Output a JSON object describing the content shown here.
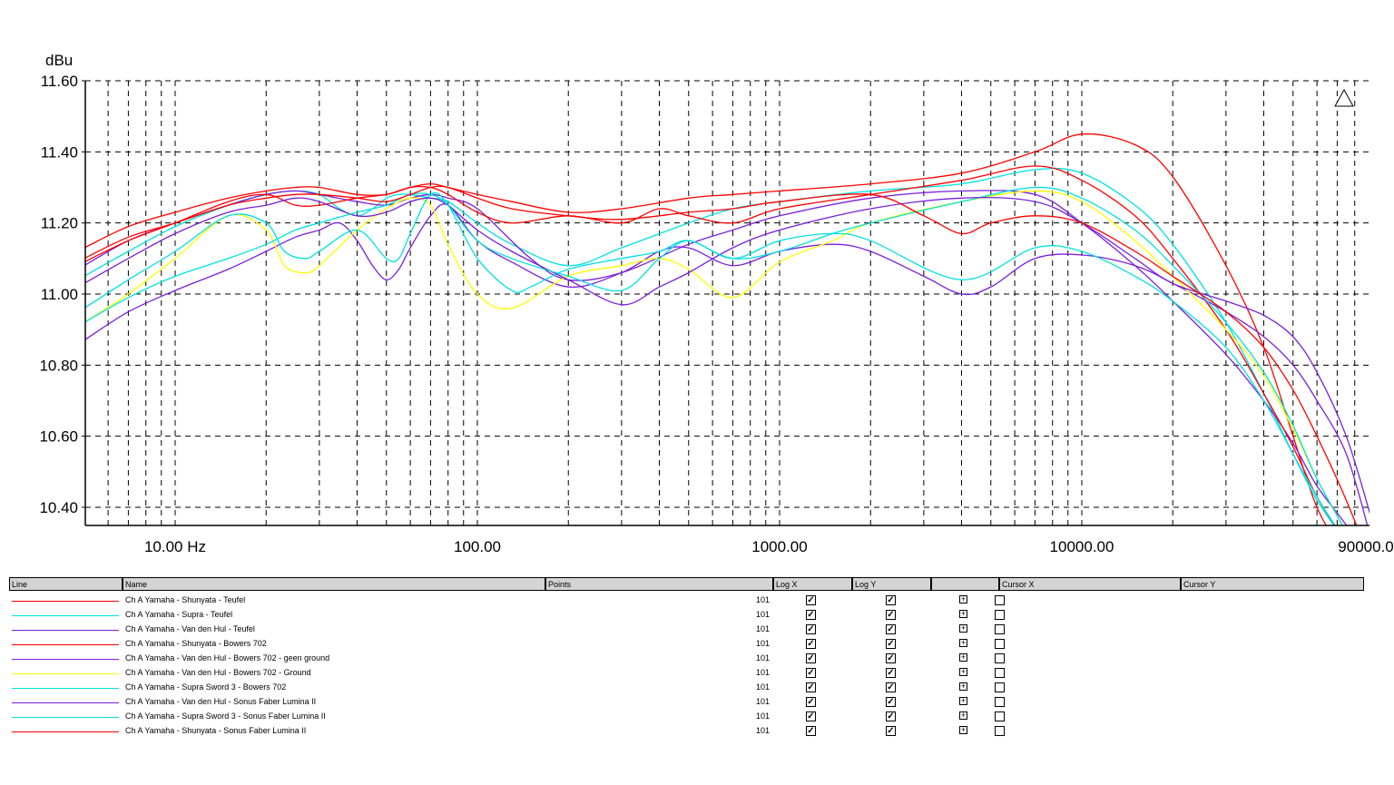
{
  "chart_data": {
    "type": "line",
    "ylabel": "dBu",
    "x_scale": "log",
    "xlim": [
      5,
      110000
    ],
    "ylim": [
      10.35,
      11.6
    ],
    "x_ticks": [
      10,
      100,
      1000,
      10000,
      90000
    ],
    "x_tick_labels": [
      "10.00 Hz",
      "100.00",
      "1000.00",
      "10000.00",
      "90000.00"
    ],
    "y_ticks": [
      10.4,
      10.6,
      10.8,
      11.0,
      11.2,
      11.4,
      11.6
    ],
    "y_tick_labels": [
      "10.40",
      "10.60",
      "10.80",
      "11.00",
      "11.20",
      "11.40",
      "11.60"
    ],
    "grid": true,
    "series": [
      {
        "name": "Ch A Yamaha - Shunyata - Teufel",
        "color": "#ff0000",
        "points": 101,
        "x": [
          5,
          7,
          10,
          15,
          20,
          25,
          30,
          40,
          50,
          60,
          70,
          80,
          100,
          130,
          200,
          300,
          500,
          700,
          1000,
          2000,
          4000,
          7000,
          10000,
          15000,
          20000,
          30000,
          40000,
          50000,
          60000,
          75000,
          90000
        ],
        "y": [
          11.13,
          11.19,
          11.23,
          11.27,
          11.29,
          11.3,
          11.3,
          11.28,
          11.28,
          11.3,
          11.31,
          11.3,
          11.28,
          11.26,
          11.23,
          11.24,
          11.27,
          11.28,
          11.29,
          11.31,
          11.34,
          11.4,
          11.45,
          11.42,
          11.33,
          11.08,
          10.85,
          10.6,
          10.4,
          10.25,
          10.1
        ]
      },
      {
        "name": "Ch A Yamaha - Supra - Teufel",
        "color": "#00e0e0",
        "points": 101,
        "x": [
          5,
          7,
          10,
          15,
          20,
          25,
          30,
          35,
          40,
          45,
          50,
          55,
          60,
          70,
          80,
          100,
          130,
          200,
          300,
          500,
          700,
          1000,
          2000,
          4000,
          7000,
          10000,
          15000,
          20000,
          30000,
          40000,
          50000,
          60000,
          75000,
          90000
        ],
        "y": [
          11.05,
          11.12,
          11.19,
          11.25,
          11.28,
          11.29,
          11.28,
          11.24,
          11.22,
          11.24,
          11.27,
          11.28,
          11.28,
          11.27,
          11.26,
          11.2,
          11.14,
          11.08,
          11.13,
          11.2,
          11.24,
          11.26,
          11.29,
          11.31,
          11.35,
          11.34,
          11.25,
          11.14,
          10.92,
          10.72,
          10.55,
          10.42,
          10.3,
          10.2
        ]
      },
      {
        "name": "Ch A Yamaha - Van den Hul - Teufel",
        "color": "#7a1fdc",
        "points": 101,
        "x": [
          5,
          7,
          10,
          15,
          20,
          25,
          30,
          40,
          50,
          60,
          70,
          80,
          100,
          150,
          200,
          300,
          500,
          700,
          1000,
          2000,
          4000,
          7000,
          10000,
          15000,
          20000,
          30000,
          40000,
          50000,
          60000,
          75000,
          90000
        ],
        "y": [
          11.08,
          11.15,
          11.2,
          11.25,
          11.28,
          11.29,
          11.28,
          11.26,
          11.25,
          11.27,
          11.28,
          11.27,
          11.24,
          11.1,
          11.04,
          11.06,
          11.14,
          11.18,
          11.22,
          11.27,
          11.29,
          11.28,
          11.2,
          11.08,
          10.98,
          10.83,
          10.7,
          10.58,
          10.46,
          10.35,
          10.25
        ]
      },
      {
        "name": "Ch A Yamaha - Shunyata - Bowers 702",
        "color": "#ff0000",
        "points": 101,
        "x": [
          5,
          7,
          10,
          15,
          20,
          25,
          30,
          40,
          50,
          60,
          70,
          80,
          100,
          130,
          200,
          300,
          400,
          500,
          700,
          1000,
          2000,
          4000,
          7000,
          10000,
          15000,
          20000,
          30000,
          40000,
          50000,
          60000,
          75000,
          90000
        ],
        "y": [
          11.09,
          11.15,
          11.2,
          11.26,
          11.28,
          11.25,
          11.25,
          11.27,
          11.28,
          11.3,
          11.3,
          11.28,
          11.23,
          11.2,
          11.22,
          11.2,
          11.24,
          11.22,
          11.2,
          11.24,
          11.28,
          11.32,
          11.36,
          11.32,
          11.22,
          11.1,
          10.9,
          10.72,
          10.57,
          10.43,
          10.3,
          10.2
        ]
      },
      {
        "name": "Ch A Yamaha - Van den Hul - Bowers 702 - geen ground",
        "color": "#7a1fdc",
        "points": 101,
        "x": [
          5,
          7,
          10,
          15,
          20,
          25,
          30,
          35,
          40,
          45,
          50,
          55,
          60,
          70,
          80,
          100,
          130,
          200,
          300,
          400,
          500,
          700,
          1000,
          1500,
          2000,
          3000,
          4000,
          5000,
          7000,
          10000,
          15000,
          20000,
          30000,
          40000,
          50000,
          60000,
          75000,
          90000
        ],
        "y": [
          10.87,
          10.95,
          11.01,
          11.07,
          11.12,
          11.16,
          11.18,
          11.2,
          11.15,
          11.08,
          11.04,
          11.07,
          11.13,
          11.22,
          11.25,
          11.15,
          11.09,
          11.02,
          11.06,
          11.12,
          11.13,
          11.08,
          11.12,
          11.14,
          11.12,
          11.05,
          11.0,
          11.02,
          11.1,
          11.11,
          11.08,
          11.03,
          10.95,
          10.88,
          10.8,
          10.7,
          10.55,
          10.32
        ]
      },
      {
        "name": "Ch A Yamaha - Van den Hul - Bowers 702 - Ground",
        "color": "#ffff00",
        "points": 101,
        "x": [
          5,
          7,
          10,
          15,
          20,
          23,
          27,
          30,
          40,
          50,
          60,
          70,
          80,
          100,
          130,
          200,
          300,
          400,
          500,
          700,
          1000,
          1500,
          2000,
          4000,
          7000,
          10000,
          15000,
          20000,
          30000,
          40000,
          50000,
          60000,
          75000,
          90000
        ],
        "y": [
          10.92,
          11.0,
          11.1,
          11.22,
          11.18,
          11.08,
          11.06,
          11.08,
          11.18,
          11.24,
          11.27,
          11.25,
          11.14,
          11.0,
          10.96,
          11.05,
          11.08,
          11.1,
          11.07,
          10.99,
          11.09,
          11.15,
          11.2,
          11.26,
          11.29,
          11.26,
          11.15,
          11.05,
          10.9,
          10.77,
          10.62,
          10.48,
          10.33,
          10.2
        ]
      },
      {
        "name": "Ch A Yamaha - Supra Sword 3 - Bowers 702",
        "color": "#00e0e0",
        "points": 101,
        "x": [
          5,
          7,
          10,
          15,
          20,
          23,
          27,
          30,
          40,
          50,
          55,
          60,
          70,
          80,
          100,
          130,
          150,
          200,
          300,
          400,
          500,
          700,
          1000,
          1500,
          2000,
          4000,
          7000,
          10000,
          15000,
          20000,
          30000,
          40000,
          50000,
          60000,
          75000,
          90000
        ],
        "y": [
          10.96,
          11.04,
          11.12,
          11.22,
          11.2,
          11.12,
          11.1,
          11.12,
          11.18,
          11.1,
          11.1,
          11.17,
          11.28,
          11.25,
          11.1,
          11.01,
          11.02,
          11.07,
          11.1,
          11.12,
          11.15,
          11.1,
          11.12,
          11.17,
          11.2,
          11.26,
          11.3,
          11.27,
          11.18,
          11.08,
          10.92,
          10.78,
          10.63,
          10.48,
          10.33,
          10.2
        ]
      },
      {
        "name": "Ch A Yamaha - Van den Hul - Sonus Faber Lumina II",
        "color": "#7a1fdc",
        "points": 101,
        "x": [
          5,
          7,
          10,
          15,
          20,
          25,
          30,
          40,
          50,
          60,
          70,
          80,
          100,
          130,
          200,
          300,
          400,
          500,
          700,
          1000,
          2000,
          4000,
          7000,
          10000,
          15000,
          20000,
          30000,
          40000,
          50000,
          60000,
          75000,
          90000
        ],
        "y": [
          11.03,
          11.1,
          11.17,
          11.23,
          11.25,
          11.27,
          11.26,
          11.22,
          11.23,
          11.26,
          11.27,
          11.25,
          11.18,
          11.12,
          11.04,
          10.97,
          11.02,
          11.06,
          11.13,
          11.18,
          11.24,
          11.27,
          11.26,
          11.2,
          11.1,
          11.03,
          10.98,
          10.94,
          10.88,
          10.78,
          10.6,
          10.38
        ]
      },
      {
        "name": "Ch A Yamaha - Supra Sword 3 - Sonus Faber Lumina II",
        "color": "#00e0e0",
        "points": 101,
        "x": [
          5,
          7,
          10,
          15,
          20,
          25,
          30,
          40,
          50,
          60,
          70,
          80,
          100,
          130,
          200,
          300,
          400,
          500,
          700,
          1000,
          1500,
          2000,
          4000,
          7000,
          10000,
          15000,
          20000,
          30000,
          40000,
          50000,
          60000,
          75000,
          90000
        ],
        "y": [
          10.92,
          10.99,
          11.05,
          11.1,
          11.14,
          11.18,
          11.2,
          11.23,
          11.25,
          11.28,
          11.28,
          11.25,
          11.15,
          11.1,
          11.05,
          11.01,
          11.1,
          11.15,
          11.1,
          11.15,
          11.17,
          11.15,
          11.04,
          11.13,
          11.12,
          11.05,
          10.98,
          10.85,
          10.7,
          10.55,
          10.43,
          10.3,
          10.2
        ]
      },
      {
        "name": "Ch A Yamaha - Shunyata - Sonus Faber Lumina II",
        "color": "#ff0000",
        "points": 101,
        "x": [
          5,
          7,
          10,
          15,
          20,
          25,
          30,
          40,
          50,
          60,
          70,
          80,
          100,
          130,
          200,
          300,
          500,
          700,
          1000,
          2000,
          3000,
          4000,
          5000,
          7000,
          10000,
          15000,
          20000,
          30000,
          40000,
          50000,
          60000,
          75000,
          90000
        ],
        "y": [
          11.1,
          11.16,
          11.2,
          11.25,
          11.27,
          11.28,
          11.28,
          11.27,
          11.26,
          11.28,
          11.3,
          11.3,
          11.27,
          11.24,
          11.22,
          11.21,
          11.23,
          11.24,
          11.26,
          11.28,
          11.22,
          11.17,
          11.2,
          11.22,
          11.2,
          11.12,
          11.05,
          10.95,
          10.85,
          10.73,
          10.6,
          10.42,
          10.25
        ]
      }
    ]
  },
  "legend_table": {
    "headers": {
      "line": "Line",
      "name": "Name",
      "points": "Points",
      "log_x": "Log X",
      "log_y": "Log Y",
      "blank": "",
      "cursor_x": "Cursor X",
      "cursor_y": "Cursor Y"
    },
    "rows": [
      {
        "name": "Ch A Yamaha - Shunyata - Teufel",
        "color": "#ff0000",
        "points": "101",
        "log_x": true,
        "log_y": true,
        "cursor_x": false
      },
      {
        "name": "Ch A Yamaha - Supra - Teufel",
        "color": "#00e0e0",
        "points": "101",
        "log_x": true,
        "log_y": true,
        "cursor_x": false
      },
      {
        "name": "Ch A Yamaha - Van den Hul - Teufel",
        "color": "#7a1fdc",
        "points": "101",
        "log_x": true,
        "log_y": true,
        "cursor_x": false
      },
      {
        "name": "Ch A Yamaha - Shunyata - Bowers 702",
        "color": "#ff0000",
        "points": "101",
        "log_x": true,
        "log_y": true,
        "cursor_x": false
      },
      {
        "name": "Ch A Yamaha - Van den Hul - Bowers 702 - geen ground",
        "color": "#7a1fdc",
        "points": "101",
        "log_x": true,
        "log_y": true,
        "cursor_x": false
      },
      {
        "name": "Ch A Yamaha - Van den Hul - Bowers 702 - Ground",
        "color": "#ffff00",
        "points": "101",
        "log_x": true,
        "log_y": true,
        "cursor_x": false
      },
      {
        "name": "Ch A Yamaha - Supra Sword 3 - Bowers 702",
        "color": "#00e0e0",
        "points": "101",
        "log_x": true,
        "log_y": true,
        "cursor_x": false
      },
      {
        "name": "Ch A Yamaha - Van den Hul - Sonus Faber Lumina II",
        "color": "#7a1fdc",
        "points": "101",
        "log_x": true,
        "log_y": true,
        "cursor_x": false
      },
      {
        "name": "Ch A Yamaha - Supra Sword 3 - Sonus Faber Lumina II",
        "color": "#00e0e0",
        "points": "101",
        "log_x": true,
        "log_y": true,
        "cursor_x": false
      },
      {
        "name": "Ch A Yamaha - Shunyata - Sonus Faber Lumina II",
        "color": "#ff0000",
        "points": "101",
        "log_x": true,
        "log_y": true,
        "cursor_x": false
      }
    ]
  },
  "icons": {
    "autoscale": "triangle-icon",
    "expand": "plus-box-icon"
  }
}
